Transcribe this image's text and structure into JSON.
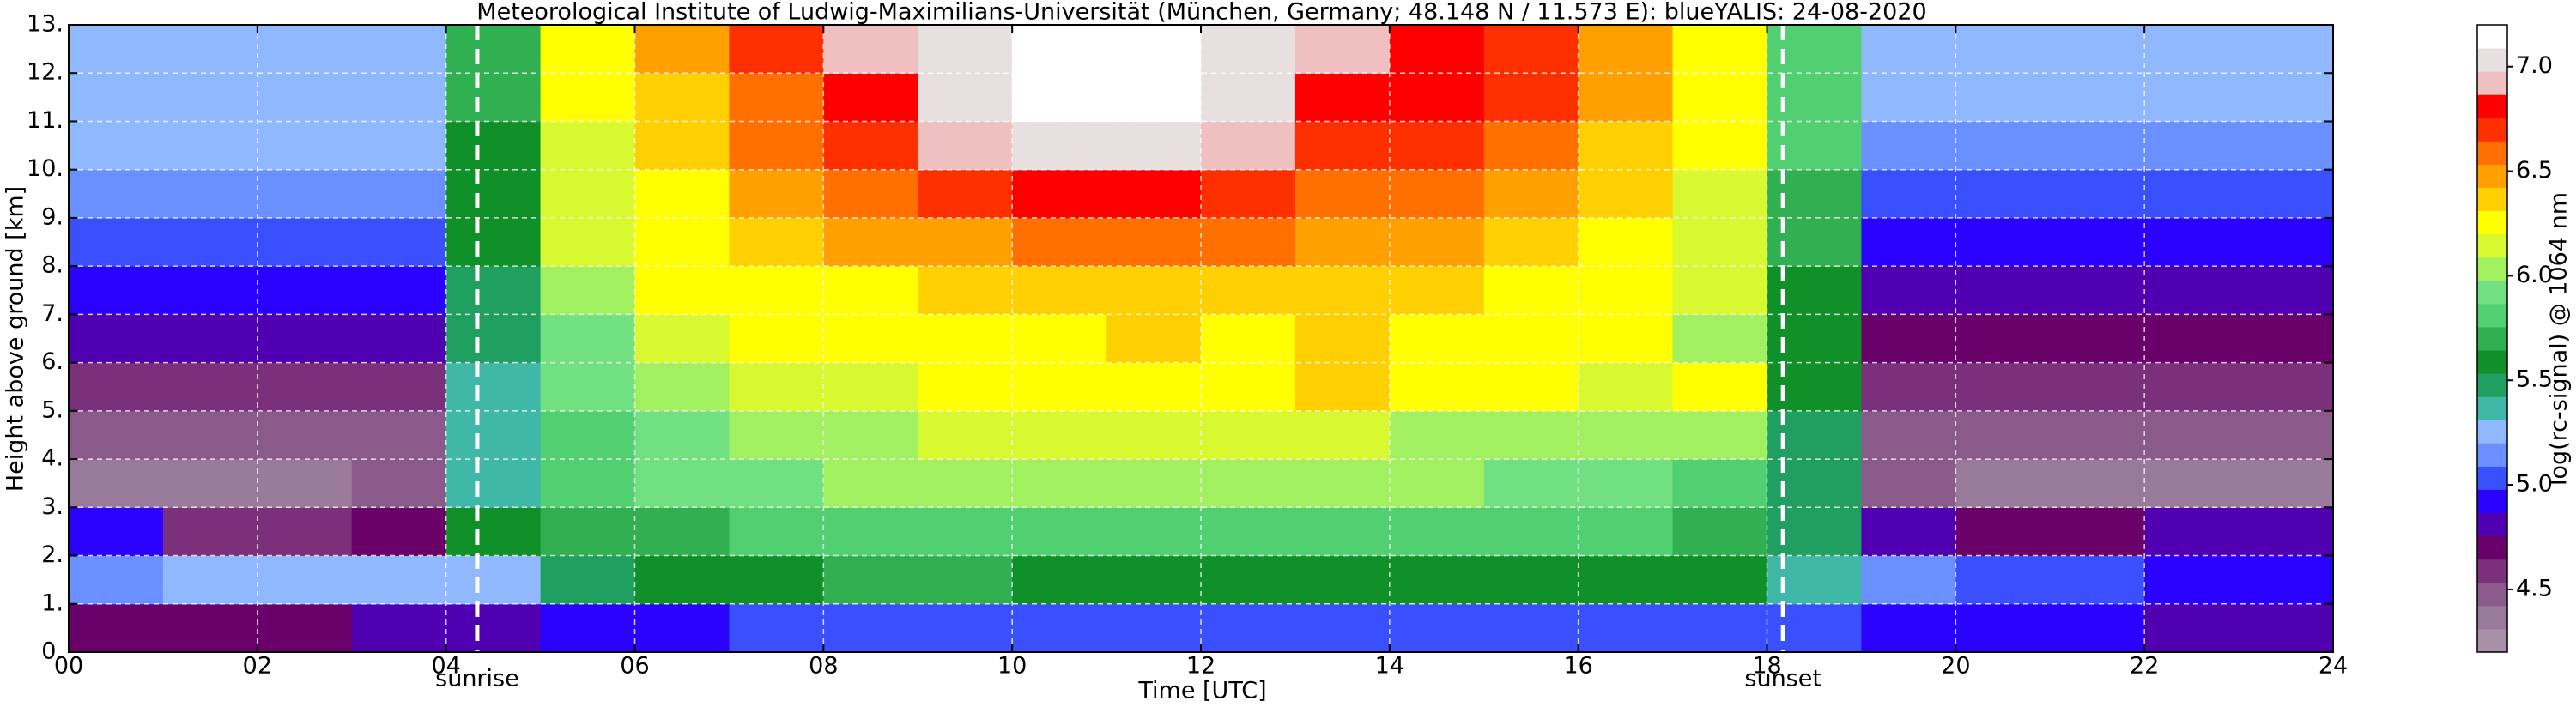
{
  "chart_data": {
    "type": "heatmap",
    "title": "Meteorological Institute of Ludwig-Maximilians-Universität (München, Germany; 48.148 N / 11.573 E):    blueYALIS: 24-08-2020",
    "xlabel": "Time [UTC]",
    "ylabel": "Height above ground [km]",
    "colorbar_label": "log(rc-signal) @ 1064 nm",
    "xlim": [
      0,
      24
    ],
    "xticks": [
      {
        "value": 0,
        "label": "00"
      },
      {
        "value": 2,
        "label": "02"
      },
      {
        "value": 4,
        "label": "04"
      },
      {
        "value": 6,
        "label": "06"
      },
      {
        "value": 8,
        "label": "08"
      },
      10,
      12,
      14,
      16,
      18,
      20,
      22,
      24
    ],
    "ylim": [
      0,
      13
    ],
    "yticks": [
      {
        "value": 0,
        "label": "0."
      },
      {
        "value": 1,
        "label": "1."
      },
      {
        "value": 2,
        "label": "2."
      },
      {
        "value": 3,
        "label": "3."
      },
      {
        "value": 4,
        "label": "4."
      },
      {
        "value": 5,
        "label": "5."
      },
      {
        "value": 6,
        "label": "6."
      },
      {
        "value": 7,
        "label": "7."
      },
      {
        "value": 8,
        "label": "8."
      },
      {
        "value": 9,
        "label": "9."
      },
      {
        "value": 10,
        "label": "10."
      },
      {
        "value": 11,
        "label": "11."
      },
      {
        "value": 12,
        "label": "12."
      },
      {
        "value": 13,
        "label": "13."
      }
    ],
    "grid": true,
    "clim": [
      4.2,
      7.2
    ],
    "cticks": [
      4.5,
      {
        "value": 5,
        "label": "5.0"
      },
      5.5,
      {
        "value": 6,
        "label": "6.0"
      },
      6.5,
      {
        "value": 7,
        "label": "7.0"
      }
    ],
    "colormap": [
      "#a891a8",
      "#9a7a9a",
      "#8a5a8a",
      "#7a307a",
      "#6a006a",
      "#5000b0",
      "#2a00ff",
      "#3a50ff",
      "#6a90ff",
      "#90b8ff",
      "#40b8a8",
      "#20a060",
      "#109028",
      "#30b050",
      "#50d070",
      "#70e080",
      "#a0f060",
      "#d8f830",
      "#ffff00",
      "#ffd000",
      "#ffa000",
      "#ff7000",
      "#ff3000",
      "#ff0000",
      "#f0c0c0",
      "#e8e0e0",
      "#ffffff"
    ],
    "vlines": [
      {
        "x": 4.33,
        "label": "sunrise"
      },
      {
        "x": 18.17,
        "label": "sunset"
      }
    ],
    "z": [
      [
        4.7,
        4.7,
        4.7,
        4.8,
        4.8,
        4.9,
        4.9,
        5.0,
        5.0,
        5.0,
        5.0,
        5.0,
        5.0,
        5.0,
        5.0,
        5.0,
        5.0,
        5.0,
        5.0,
        4.9,
        4.9,
        4.9,
        4.8,
        4.8
      ],
      [
        5.1,
        5.2,
        5.2,
        5.2,
        5.3,
        5.5,
        5.6,
        5.6,
        5.7,
        5.7,
        5.6,
        5.6,
        5.6,
        5.6,
        5.6,
        5.6,
        5.6,
        5.6,
        5.4,
        5.1,
        5.0,
        5.0,
        4.9,
        4.9
      ],
      [
        4.9,
        4.6,
        4.6,
        4.7,
        5.6,
        5.7,
        5.7,
        5.8,
        5.8,
        5.8,
        5.8,
        5.8,
        5.8,
        5.8,
        5.8,
        5.8,
        5.8,
        5.7,
        5.5,
        4.8,
        4.7,
        4.7,
        4.8,
        4.8
      ],
      [
        4.4,
        4.4,
        4.4,
        4.5,
        5.4,
        5.8,
        5.9,
        5.9,
        6.0,
        6.0,
        6.0,
        6.0,
        6.0,
        6.0,
        6.0,
        5.9,
        5.9,
        5.8,
        5.5,
        4.5,
        4.4,
        4.4,
        4.4,
        4.4
      ],
      [
        4.5,
        4.5,
        4.5,
        4.5,
        5.4,
        5.8,
        5.9,
        6.0,
        6.0,
        6.1,
        6.1,
        6.1,
        6.1,
        6.1,
        6.0,
        6.0,
        6.0,
        6.0,
        5.5,
        4.5,
        4.5,
        4.5,
        4.5,
        4.5
      ],
      [
        4.6,
        4.6,
        4.6,
        4.6,
        5.4,
        5.9,
        6.0,
        6.1,
        6.1,
        6.2,
        6.2,
        6.2,
        6.3,
        6.4,
        6.2,
        6.2,
        6.1,
        6.3,
        5.6,
        4.6,
        4.6,
        4.6,
        4.6,
        4.6
      ],
      [
        4.8,
        4.8,
        4.8,
        4.8,
        5.5,
        5.9,
        6.1,
        6.3,
        6.2,
        6.3,
        6.3,
        6.4,
        6.3,
        6.4,
        6.3,
        6.3,
        6.2,
        6.0,
        5.6,
        4.7,
        4.7,
        4.7,
        4.7,
        4.7
      ],
      [
        4.9,
        4.9,
        4.9,
        4.9,
        5.5,
        6.0,
        6.2,
        6.3,
        6.3,
        6.4,
        6.4,
        6.4,
        6.4,
        6.4,
        6.4,
        6.3,
        6.3,
        6.1,
        5.6,
        4.8,
        4.8,
        4.8,
        4.8,
        4.8
      ],
      [
        5.0,
        5.0,
        5.0,
        5.0,
        5.6,
        6.1,
        6.3,
        6.4,
        6.5,
        6.5,
        6.6,
        6.6,
        6.6,
        6.5,
        6.5,
        6.4,
        6.3,
        6.1,
        5.7,
        4.9,
        4.9,
        4.9,
        4.9,
        4.9
      ],
      [
        5.1,
        5.1,
        5.1,
        5.1,
        5.6,
        6.1,
        6.3,
        6.5,
        6.6,
        6.7,
        6.8,
        6.8,
        6.7,
        6.6,
        6.6,
        6.5,
        6.4,
        6.1,
        5.7,
        5.0,
        5.0,
        5.0,
        5.0,
        5.0
      ],
      [
        5.2,
        5.2,
        5.2,
        5.2,
        5.6,
        6.1,
        6.4,
        6.6,
        6.7,
        6.9,
        7.0,
        7.0,
        6.9,
        6.7,
        6.7,
        6.6,
        6.4,
        6.2,
        5.8,
        5.1,
        5.1,
        5.1,
        5.1,
        5.1
      ],
      [
        5.3,
        5.3,
        5.3,
        5.3,
        5.7,
        6.2,
        6.4,
        6.6,
        6.8,
        7.0,
        7.1,
        7.1,
        7.0,
        6.8,
        6.8,
        6.7,
        6.5,
        6.2,
        5.8,
        5.2,
        5.2,
        5.2,
        5.2,
        5.2
      ],
      [
        5.3,
        5.3,
        5.3,
        5.3,
        5.7,
        6.2,
        6.5,
        6.7,
        6.9,
        7.0,
        7.1,
        7.1,
        7.0,
        6.9,
        6.8,
        6.7,
        6.5,
        6.2,
        5.8,
        5.3,
        5.3,
        5.3,
        5.3,
        5.3
      ]
    ]
  }
}
